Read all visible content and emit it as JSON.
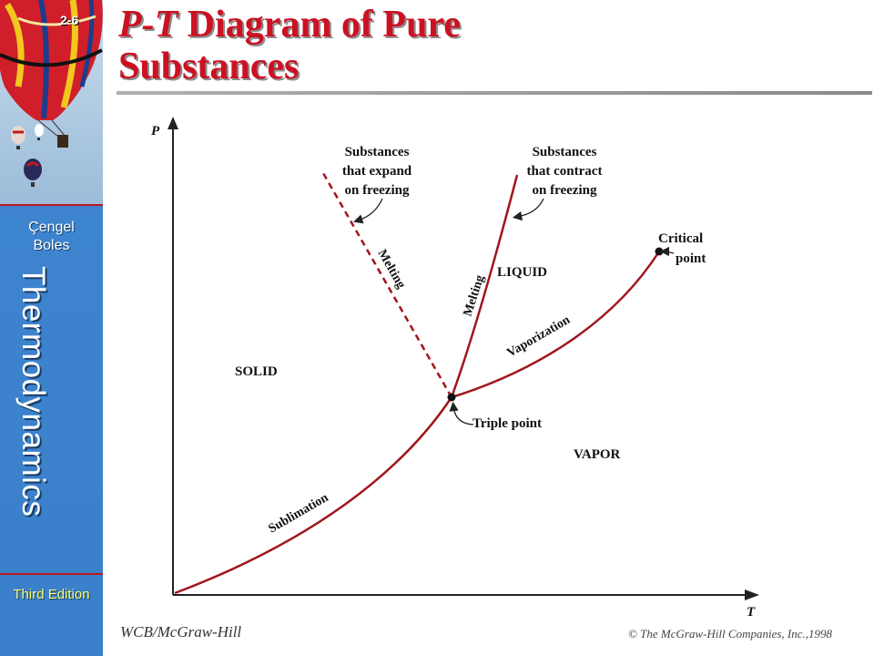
{
  "slide": {
    "number": "2-6",
    "title_italic": "P-T",
    "title_rest": " Diagram of Pure",
    "title_line2": "Substances"
  },
  "sidebar": {
    "author_line1": "Çengel",
    "author_line2": "Boles",
    "book_title": "Thermodynamics",
    "edition": "Third Edition"
  },
  "footer": {
    "publisher": "WCB/McGraw-Hill",
    "copyright": "© The McGraw-Hill Companies, Inc.,1998"
  },
  "diagram": {
    "axis_p": "P",
    "axis_t": "T",
    "region_solid": "SOLID",
    "region_liquid": "LIQUID",
    "region_vapor": "VAPOR",
    "curve_sublimation": "Sublimation",
    "curve_vaporization": "Vaporization",
    "curve_melting_left": "Melting",
    "curve_melting_right": "Melting",
    "triple_point": "Triple point",
    "critical_line1": "Critical",
    "critical_line2": "point",
    "expand_line1": "Substances",
    "expand_line2": "that expand",
    "expand_line3": "on freezing",
    "contract_line1": "Substances",
    "contract_line2": "that contract",
    "contract_line3": "on freezing"
  },
  "colors": {
    "curve": "#a0161c",
    "title": "#cc1122",
    "sidebar": "#3f86d0"
  }
}
